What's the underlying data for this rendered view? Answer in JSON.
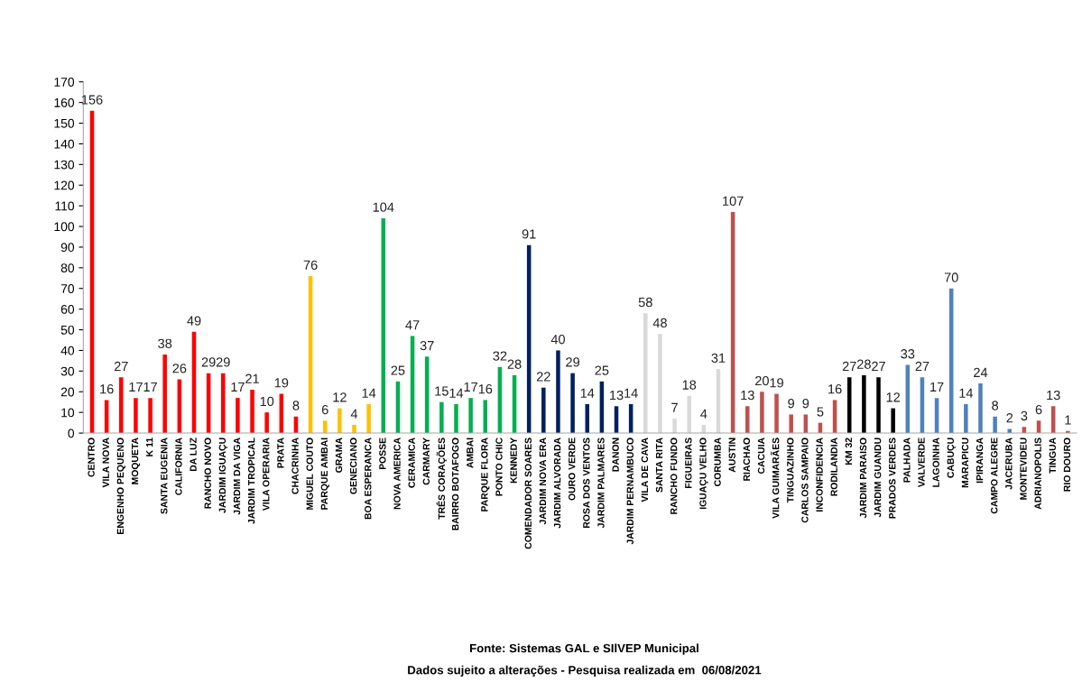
{
  "chart_data": {
    "type": "bar",
    "categories": [
      "CENTRO",
      "VILA NOVA",
      "ENGENHO PEQUENO",
      "MOQUETA",
      "K 11",
      "SANTA EUGENIA",
      "CALIFORNIA",
      "DA LUZ",
      "RANCHO NOVO",
      "JARDIM IGUAÇU",
      "JARDIM DA VIGA",
      "JARDIM TROPICAL",
      "VILA OPERARIA",
      "PRATA",
      "CHACRINHA",
      "MIGUEL COUTO",
      "PARQUE AMBAI",
      "GRAMA",
      "GENECIANO",
      "BOA ESPERANCA",
      "POSSE",
      "NOVA AMERICA",
      "CERAMICA",
      "CARMARY",
      "TRÊS CORAÇÕES",
      "BAIRRO BOTAFOGO",
      "AMBAI",
      "PARQUE FLORA",
      "PONTO CHIC",
      "KENNEDY",
      "COMENDADOR SOARES",
      "JARDIM NOVA ERA",
      "JARDIM ALVORADA",
      "OURO VERDE",
      "ROSA DOS VENTOS",
      "JARDIM PALMARES",
      "DANON",
      "JARDIM PERNAMBUCO",
      "VILA DE CAVA",
      "SANTA RITA",
      "RANCHO FUNDO",
      "FIGUEIRAS",
      "IGUAÇU VELHO",
      "CORUMBA",
      "AUSTIN",
      "RIACHAO",
      "CACUIA",
      "VILA GUIMARÃES",
      "TINGUAZINHO",
      "CARLOS SAMPAIO",
      "INCONFIDENCIA",
      "RODILANDIA",
      "KM 32",
      "JARDIM PARAISO",
      "JARDIM GUANDU",
      "PRADOS VERDES",
      "PALHADA",
      "VALVERDE",
      "LAGOINHA",
      "CABUÇU",
      "MARAPICU",
      "IPIRANGA",
      "CAMPO ALEGRE",
      "JACERUBA",
      "MONTEVIDEU",
      "ADRIANOPOLIS",
      "TINGUA",
      "RIO DOURO"
    ],
    "values": [
      156,
      16,
      27,
      17,
      17,
      38,
      26,
      49,
      29,
      29,
      17,
      21,
      10,
      19,
      8,
      76,
      6,
      12,
      4,
      14,
      104,
      25,
      47,
      37,
      15,
      14,
      17,
      16,
      32,
      28,
      91,
      22,
      40,
      29,
      14,
      25,
      13,
      14,
      58,
      48,
      7,
      18,
      4,
      31,
      107,
      13,
      20,
      19,
      9,
      9,
      5,
      16,
      27,
      28,
      27,
      12,
      33,
      27,
      17,
      70,
      14,
      24,
      8,
      2,
      3,
      6,
      13,
      1
    ],
    "colors": [
      "#ff0000",
      "#ff0000",
      "#ff0000",
      "#ff0000",
      "#ff0000",
      "#ff0000",
      "#ff0000",
      "#ff0000",
      "#ff0000",
      "#ff0000",
      "#ff0000",
      "#ff0000",
      "#ff0000",
      "#ff0000",
      "#ff0000",
      "#ffc000",
      "#ffc000",
      "#ffc000",
      "#ffc000",
      "#ffc000",
      "#00b050",
      "#00b050",
      "#00b050",
      "#00b050",
      "#00b050",
      "#00b050",
      "#00b050",
      "#00b050",
      "#00b050",
      "#00b050",
      "#002060",
      "#002060",
      "#002060",
      "#002060",
      "#002060",
      "#002060",
      "#002060",
      "#002060",
      "#d9d9d9",
      "#d9d9d9",
      "#d9d9d9",
      "#d9d9d9",
      "#d9d9d9",
      "#d9d9d9",
      "#c0504d",
      "#c0504d",
      "#c0504d",
      "#c0504d",
      "#c0504d",
      "#c0504d",
      "#c0504d",
      "#c0504d",
      "#000000",
      "#000000",
      "#000000",
      "#000000",
      "#4f81bd",
      "#4f81bd",
      "#4f81bd",
      "#4f81bd",
      "#4f81bd",
      "#4f81bd",
      "#4f81bd",
      "#4f81bd",
      "#c0504d",
      "#c0504d",
      "#c0504d",
      "#c0504d"
    ],
    "ylim": [
      0,
      170
    ],
    "yticks": [
      0,
      10,
      20,
      30,
      40,
      50,
      60,
      70,
      80,
      90,
      100,
      110,
      120,
      130,
      140,
      150,
      160,
      170
    ],
    "grid": false,
    "data_labels": true,
    "annotations": [
      "Fonte: Sistemas GAL e SIlVEP Municipal",
      "Dados sujeito a alterações - Pesquisa realizada em  06/08/2021"
    ]
  }
}
